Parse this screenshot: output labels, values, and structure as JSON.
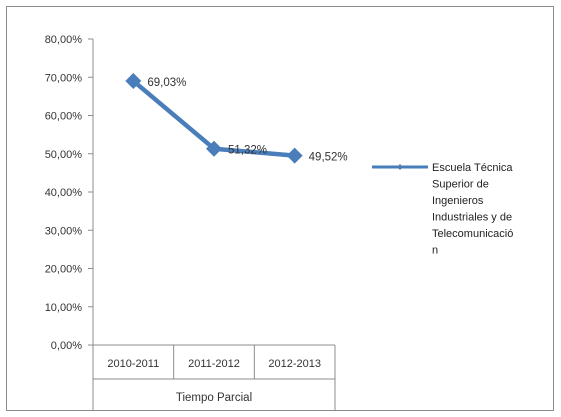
{
  "chart_data": {
    "type": "line",
    "title": "",
    "xlabel": "Tiempo Parcial",
    "ylabel": "",
    "categories": [
      "2010-2011",
      "2011-2012",
      "2012-2013"
    ],
    "series": [
      {
        "name": "Escuela Técnica Superior de Ingenieros Industriales y de Telecomunicación",
        "legend_lines": [
          "Escuela Técnica",
          "Superior de",
          "Ingenieros",
          "Industriales y de",
          "Telecomunicació",
          "n"
        ],
        "values": [
          69.03,
          51.32,
          49.52
        ],
        "labels": [
          "69,03%",
          "51,32%",
          "49,52%"
        ],
        "color": "#4a7ebb",
        "marker": "diamond"
      }
    ],
    "ylim": [
      0,
      80
    ],
    "yticks": [
      0,
      10,
      20,
      30,
      40,
      50,
      60,
      70,
      80
    ],
    "ytick_labels": [
      "0,00%",
      "10,00%",
      "20,00%",
      "30,00%",
      "40,00%",
      "50,00%",
      "60,00%",
      "70,00%",
      "80,00%"
    ],
    "grid": false,
    "legend_position": "right"
  }
}
